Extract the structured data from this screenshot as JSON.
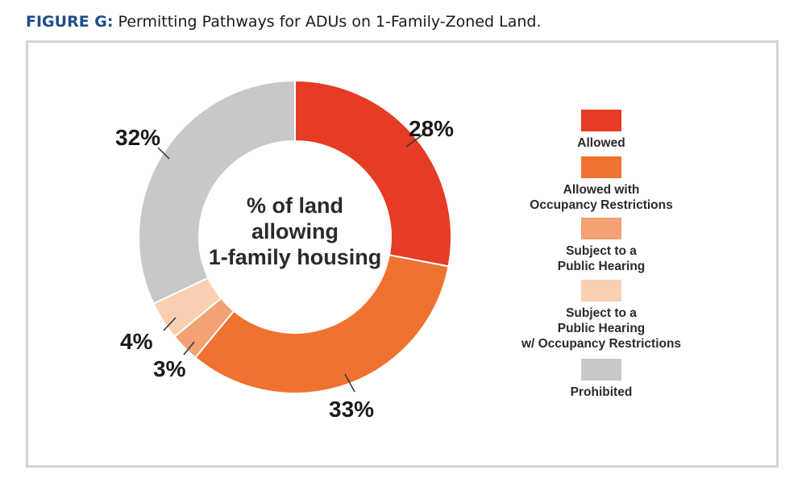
{
  "figure": {
    "label": "FIGURE G:",
    "caption": "Permitting Pathways for ADUs on 1-Family-Zoned Land."
  },
  "chart_data": {
    "type": "pie",
    "style": "donut",
    "title": "Permitting Pathways for ADUs on 1-Family-Zoned Land.",
    "center_label": [
      "% of land",
      "allowing",
      "1-family housing"
    ],
    "categories": [
      "Allowed",
      "Allowed with Occupancy Restrictions",
      "Subject to a Public Hearing",
      "Subject to a Public Hearing w/ Occupancy Restrictions",
      "Prohibited"
    ],
    "values": [
      28,
      33,
      3,
      4,
      32
    ],
    "value_labels": [
      "28%",
      "33%",
      "3%",
      "4%",
      "32%"
    ],
    "colors": [
      "#e63b24",
      "#f07230",
      "#f4a173",
      "#fbd0b2",
      "#c8c8c8"
    ],
    "legend": [
      {
        "name": "Allowed",
        "lines": [
          "Allowed"
        ]
      },
      {
        "name": "Allowed with Occupancy Restrictions",
        "lines": [
          "Allowed with",
          "Occupancy Restrictions"
        ]
      },
      {
        "name": "Subject to a Public Hearing",
        "lines": [
          "Subject to a",
          "Public Hearing"
        ]
      },
      {
        "name": "Subject to a Public Hearing w/ Occupancy Restrictions",
        "lines": [
          "Subject to a",
          "Public Hearing",
          "w/ Occupancy Restrictions"
        ]
      },
      {
        "name": "Prohibited",
        "lines": [
          "Prohibited"
        ]
      }
    ],
    "legend_position": "right"
  }
}
